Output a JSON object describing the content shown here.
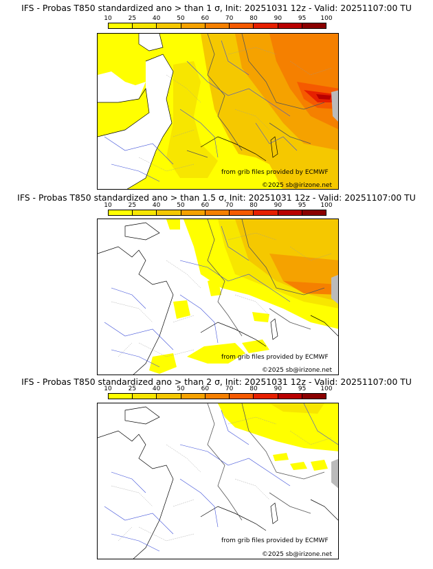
{
  "colorbar": {
    "ticks": [
      "10",
      "25",
      "40",
      "50",
      "60",
      "70",
      "80",
      "90",
      "95",
      "100"
    ],
    "colors": [
      "#ffff00",
      "#f7e600",
      "#f5c800",
      "#f5a200",
      "#f58000",
      "#f55a00",
      "#e62000",
      "#b80000",
      "#8a0000"
    ]
  },
  "panels": [
    {
      "title": "IFS - Probas T850  standardized ano > than 1 σ, Init: 20251031 12z - Valid: 20251107:00 TU",
      "credit_source": "from grib files provided by ECMWF",
      "credit_copyright": "©2025 sb@irizone.net"
    },
    {
      "title": "IFS - Probas T850  standardized ano > than 1.5 σ, Init: 20251031 12z - Valid: 20251107:00 TU",
      "credit_source": "from grib files provided by ECMWF",
      "credit_copyright": "©2025 sb@irizone.net"
    },
    {
      "title": "IFS - Probas T850  standardized ano > than 2 σ, Init: 20251031 12z - Valid: 20251107:00 TU",
      "credit_source": "from grib files provided by ECMWF",
      "credit_copyright": "©2025 sb@irizone.net"
    }
  ]
}
